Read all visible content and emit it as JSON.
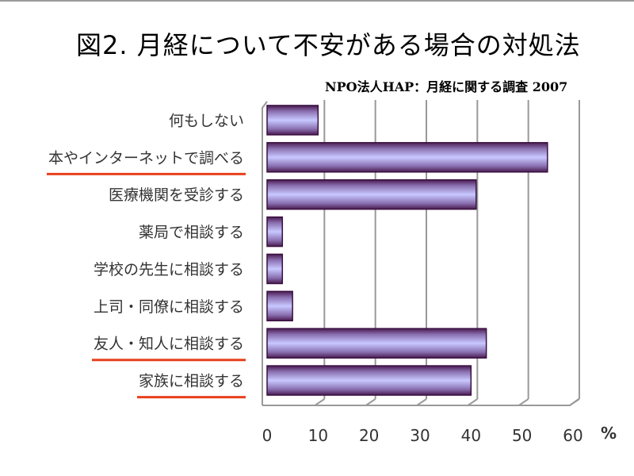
{
  "title": "図2. 月経について不安がある場合の対処法",
  "subtitle": "NPO法人HAP：月経に関する調査 2007",
  "chart_data": {
    "type": "bar",
    "orientation": "horizontal",
    "categories": [
      "何もしない",
      "本やインターネットで調べる",
      "医療機関を受診する",
      "薬局で相談する",
      "学校の先生に相談する",
      "上司・同僚に相談する",
      "友人・知人に相談する",
      "家族に相談する"
    ],
    "values": [
      10,
      55,
      41,
      3,
      3,
      5,
      43,
      40
    ],
    "highlighted": [
      false,
      true,
      false,
      false,
      false,
      false,
      true,
      true
    ],
    "xlim": [
      0,
      60
    ],
    "xticks": [
      "0",
      "10",
      "20",
      "30",
      "40",
      "50",
      "60"
    ],
    "xunit": "%",
    "grid": true,
    "colors": {
      "bar_light": "#c8c8ff",
      "bar_dark": "#4a1a50",
      "underline": "#e8401c"
    }
  }
}
